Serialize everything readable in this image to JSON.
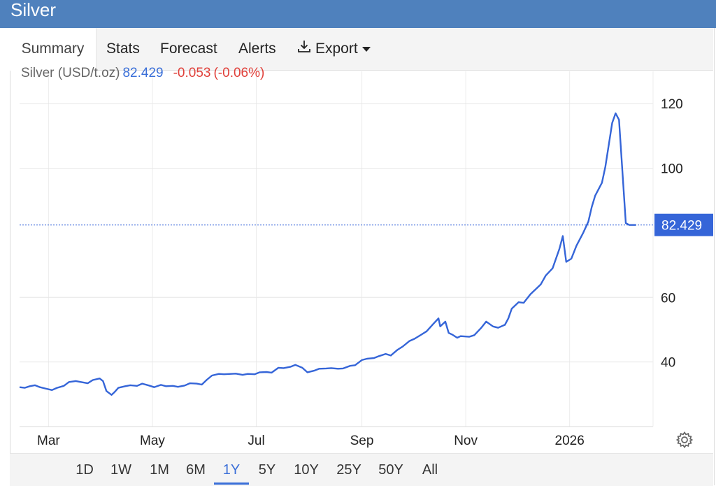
{
  "header": {
    "title": "Silver"
  },
  "tabs": [
    {
      "label": "Summary",
      "active": true
    },
    {
      "label": "Stats"
    },
    {
      "label": "Forecast"
    },
    {
      "label": "Alerts"
    },
    {
      "label": "Export",
      "icon": "download-icon"
    }
  ],
  "quote": {
    "name": "Silver (USD/t.oz)",
    "price": "82.429",
    "change": "-0.053",
    "change_pct": "(-0.06%)"
  },
  "chart_data": {
    "type": "line",
    "title": "",
    "xlabel": "",
    "ylabel": "",
    "ylim": [
      20,
      130
    ],
    "xlim": [
      "2025-02-12",
      "2026-02-19"
    ],
    "x_ticks": [
      {
        "label": "Mar",
        "date": "2025-03-01"
      },
      {
        "label": "May",
        "date": "2025-05-01"
      },
      {
        "label": "Jul",
        "date": "2025-07-01"
      },
      {
        "label": "Sep",
        "date": "2025-09-01"
      },
      {
        "label": "Nov",
        "date": "2025-11-01"
      },
      {
        "label": "2026",
        "date": "2026-01-01"
      }
    ],
    "y_ticks": [
      40,
      60,
      100,
      120
    ],
    "grid": true,
    "last_value_label": "82.429",
    "last_value": 82.429,
    "series": [
      {
        "color": "#3565d8",
        "points": [
          [
            "2025-02-12",
            32.2
          ],
          [
            "2025-02-15",
            32.0
          ],
          [
            "2025-02-18",
            32.5
          ],
          [
            "2025-02-21",
            32.8
          ],
          [
            "2025-02-24",
            32.2
          ],
          [
            "2025-02-27",
            31.8
          ],
          [
            "2025-03-03",
            31.3
          ],
          [
            "2025-03-06",
            32.0
          ],
          [
            "2025-03-10",
            32.6
          ],
          [
            "2025-03-13",
            33.8
          ],
          [
            "2025-03-17",
            34.1
          ],
          [
            "2025-03-20",
            33.8
          ],
          [
            "2025-03-24",
            33.4
          ],
          [
            "2025-03-27",
            34.4
          ],
          [
            "2025-03-31",
            34.9
          ],
          [
            "2025-04-02",
            34.1
          ],
          [
            "2025-04-04",
            31.0
          ],
          [
            "2025-04-07",
            29.8
          ],
          [
            "2025-04-09",
            30.8
          ],
          [
            "2025-04-11",
            32.0
          ],
          [
            "2025-04-15",
            32.5
          ],
          [
            "2025-04-18",
            32.8
          ],
          [
            "2025-04-22",
            32.6
          ],
          [
            "2025-04-25",
            33.3
          ],
          [
            "2025-04-29",
            32.7
          ],
          [
            "2025-05-02",
            32.2
          ],
          [
            "2025-05-06",
            32.9
          ],
          [
            "2025-05-09",
            32.5
          ],
          [
            "2025-05-13",
            32.6
          ],
          [
            "2025-05-16",
            32.3
          ],
          [
            "2025-05-20",
            32.7
          ],
          [
            "2025-05-23",
            33.4
          ],
          [
            "2025-05-27",
            33.3
          ],
          [
            "2025-05-30",
            33.0
          ],
          [
            "2025-06-02",
            34.5
          ],
          [
            "2025-06-05",
            35.8
          ],
          [
            "2025-06-09",
            36.3
          ],
          [
            "2025-06-12",
            36.2
          ],
          [
            "2025-06-16",
            36.3
          ],
          [
            "2025-06-19",
            36.4
          ],
          [
            "2025-06-23",
            36.0
          ],
          [
            "2025-06-26",
            36.3
          ],
          [
            "2025-06-30",
            36.2
          ],
          [
            "2025-07-03",
            36.8
          ],
          [
            "2025-07-07",
            36.9
          ],
          [
            "2025-07-10",
            36.7
          ],
          [
            "2025-07-14",
            38.2
          ],
          [
            "2025-07-17",
            38.1
          ],
          [
            "2025-07-21",
            38.5
          ],
          [
            "2025-07-24",
            39.1
          ],
          [
            "2025-07-28",
            38.2
          ],
          [
            "2025-07-31",
            36.8
          ],
          [
            "2025-08-04",
            37.3
          ],
          [
            "2025-08-07",
            37.9
          ],
          [
            "2025-08-11",
            38.0
          ],
          [
            "2025-08-14",
            38.1
          ],
          [
            "2025-08-18",
            37.9
          ],
          [
            "2025-08-21",
            38.0
          ],
          [
            "2025-08-25",
            38.8
          ],
          [
            "2025-08-28",
            39.0
          ],
          [
            "2025-09-01",
            40.6
          ],
          [
            "2025-09-04",
            41.0
          ],
          [
            "2025-09-08",
            41.2
          ],
          [
            "2025-09-11",
            41.8
          ],
          [
            "2025-09-15",
            42.5
          ],
          [
            "2025-09-18",
            42.0
          ],
          [
            "2025-09-22",
            43.8
          ],
          [
            "2025-09-25",
            44.8
          ],
          [
            "2025-09-29",
            46.5
          ],
          [
            "2025-10-02",
            47.2
          ],
          [
            "2025-10-06",
            48.5
          ],
          [
            "2025-10-09",
            49.5
          ],
          [
            "2025-10-13",
            51.8
          ],
          [
            "2025-10-16",
            53.5
          ],
          [
            "2025-10-17",
            51.0
          ],
          [
            "2025-10-20",
            52.5
          ],
          [
            "2025-10-22",
            49.0
          ],
          [
            "2025-10-24",
            48.5
          ],
          [
            "2025-10-27",
            47.5
          ],
          [
            "2025-10-29",
            48.0
          ],
          [
            "2025-11-03",
            47.8
          ],
          [
            "2025-11-06",
            48.3
          ],
          [
            "2025-11-10",
            50.5
          ],
          [
            "2025-11-13",
            52.5
          ],
          [
            "2025-11-17",
            51.0
          ],
          [
            "2025-11-20",
            50.6
          ],
          [
            "2025-11-24",
            51.5
          ],
          [
            "2025-11-26",
            53.5
          ],
          [
            "2025-11-28",
            56.5
          ],
          [
            "2025-12-02",
            58.5
          ],
          [
            "2025-12-05",
            58.3
          ],
          [
            "2025-12-09",
            61.0
          ],
          [
            "2025-12-12",
            62.5
          ],
          [
            "2025-12-15",
            64.0
          ],
          [
            "2025-12-18",
            66.8
          ],
          [
            "2025-12-22",
            69.0
          ],
          [
            "2025-12-26",
            75.0
          ],
          [
            "2025-12-28",
            79.0
          ],
          [
            "2025-12-30",
            71.0
          ],
          [
            "2026-01-02",
            72.0
          ],
          [
            "2026-01-05",
            76.0
          ],
          [
            "2026-01-07",
            78.0
          ],
          [
            "2026-01-09",
            80.0
          ],
          [
            "2026-01-12",
            83.5
          ],
          [
            "2026-01-14",
            88.0
          ],
          [
            "2026-01-16",
            91.5
          ],
          [
            "2026-01-20",
            95.5
          ],
          [
            "2026-01-22",
            100.5
          ],
          [
            "2026-01-26",
            114.0
          ],
          [
            "2026-01-28",
            117.0
          ],
          [
            "2026-01-30",
            115.0
          ],
          [
            "2026-02-03",
            83.0
          ],
          [
            "2026-02-05",
            82.429
          ],
          [
            "2026-02-09",
            82.429
          ]
        ]
      }
    ]
  },
  "range_selector": [
    {
      "label": "1D"
    },
    {
      "label": "1W"
    },
    {
      "label": "1M"
    },
    {
      "label": "6M"
    },
    {
      "label": "1Y",
      "active": true
    },
    {
      "label": "5Y"
    },
    {
      "label": "10Y"
    },
    {
      "label": "25Y"
    },
    {
      "label": "50Y"
    },
    {
      "label": "All"
    }
  ],
  "settings_icon": "gear-icon"
}
